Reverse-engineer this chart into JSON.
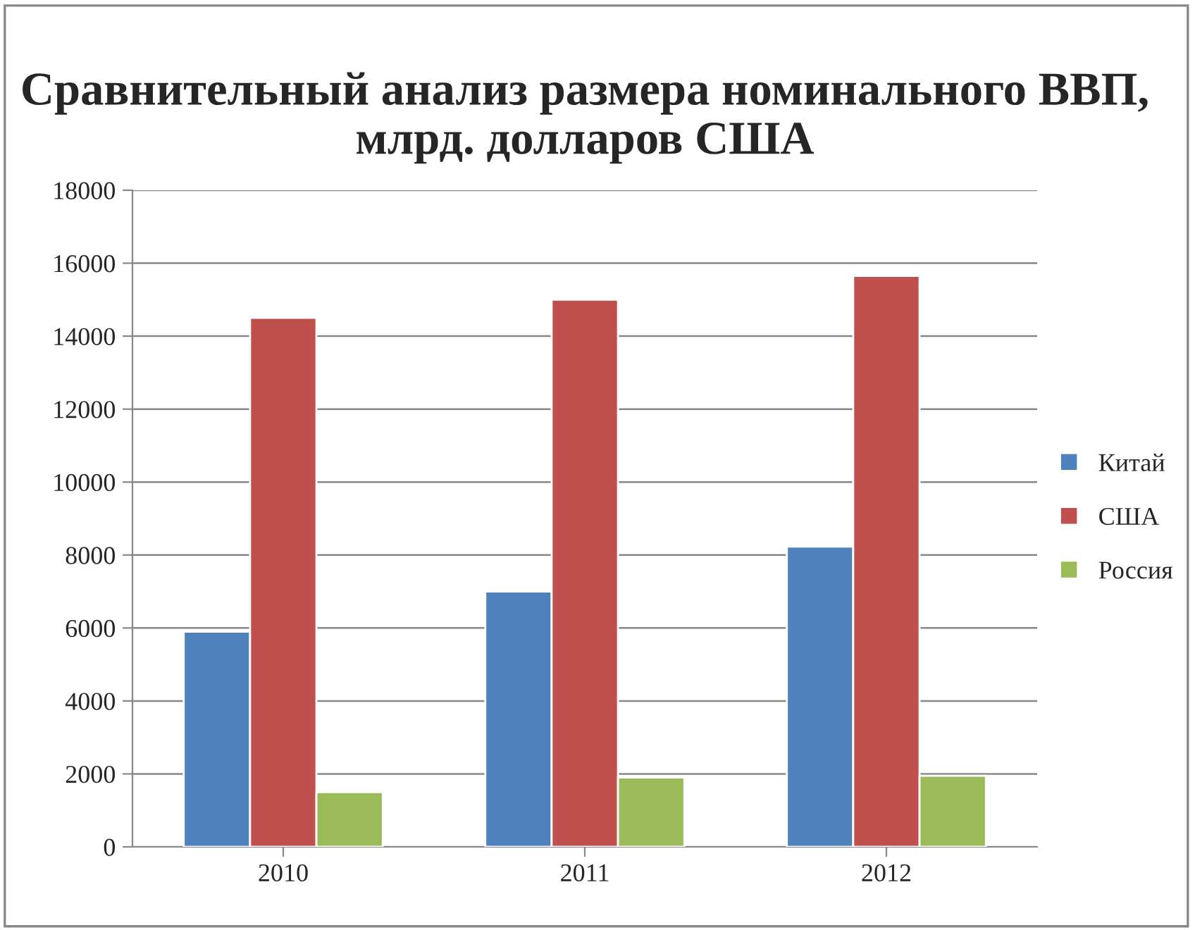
{
  "chart_data": {
    "type": "bar",
    "title": "Сравнительный анализ размера номинального ВВП, млрд. долларов США",
    "categories": [
      "2010",
      "2011",
      "2012"
    ],
    "series": [
      {
        "name": "Китай",
        "color": "#4f81bd",
        "values": [
          5900,
          7000,
          8230
        ]
      },
      {
        "name": "США",
        "color": "#c0504d",
        "values": [
          14500,
          15000,
          15650
        ]
      },
      {
        "name": "Россия",
        "color": "#9bbb59",
        "values": [
          1500,
          1900,
          1950
        ]
      }
    ],
    "ylim": [
      0,
      18000
    ],
    "yticks": [
      0,
      2000,
      4000,
      6000,
      8000,
      10000,
      12000,
      14000,
      16000,
      18000
    ],
    "grid": "y",
    "legend": "right"
  }
}
